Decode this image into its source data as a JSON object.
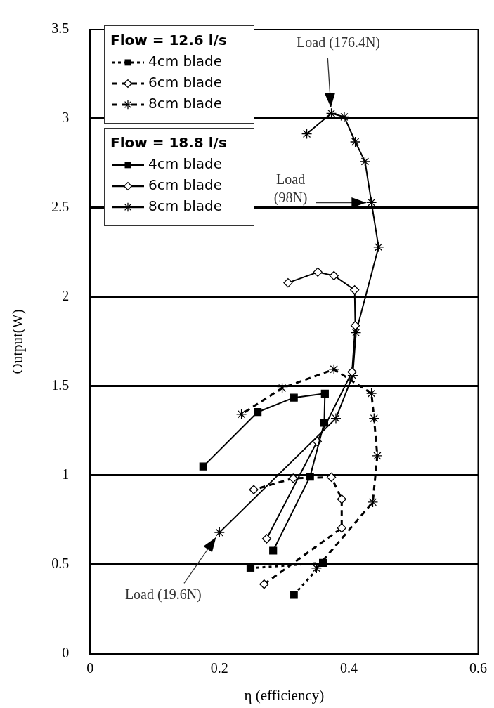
{
  "chart_data": {
    "type": "line",
    "xlabel": "η (efficiency)",
    "ylabel": "Output(W)",
    "xlim": [
      0,
      0.6
    ],
    "xticks": [
      0,
      0.2,
      0.4,
      0.6
    ],
    "ylim": [
      0,
      3.5
    ],
    "yticks": [
      0,
      0.5,
      1,
      1.5,
      2,
      2.5,
      3,
      3.5
    ],
    "grid": "y",
    "legend": "top left",
    "legend_title": "Flow = 12.6 l/s",
    "series": [
      {
        "name": "4cm blade",
        "color": "#000000",
        "marker": "square",
        "line_style": "dotted",
        "x": [
          0.315,
          0.36,
          0.248
        ],
        "values": [
          0.33,
          0.51,
          0.48
        ]
      },
      {
        "name": "6cm blade",
        "color": "#000000",
        "marker": "diamond",
        "line_style": "dashed",
        "x": [
          0.269,
          0.389,
          0.389,
          0.373,
          0.314,
          0.253
        ],
        "values": [
          0.39,
          0.705,
          0.867,
          0.99,
          0.984,
          0.92
        ]
      },
      {
        "name": "8cm blade",
        "color": "#000000",
        "marker": "cross",
        "line_style": "dashed",
        "x": [
          0.35,
          0.437,
          0.444,
          0.439,
          0.435,
          0.377,
          0.297,
          0.234
        ],
        "values": [
          0.48,
          0.85,
          1.11,
          1.32,
          1.46,
          1.595,
          1.49,
          1.343
        ]
      },
      {
        "name": "4cm blade",
        "color": "#000000",
        "marker": "square",
        "line_style": "solid",
        "x": [
          0.175,
          0.259,
          0.315,
          0.363,
          0.362,
          0.34,
          0.283
        ],
        "values": [
          1.05,
          1.355,
          1.436,
          1.459,
          1.295,
          0.993,
          0.578
        ]
      },
      {
        "name": "6cm blade",
        "color": "#000000",
        "marker": "diamond",
        "line_style": "solid",
        "x": [
          0.306,
          0.352,
          0.377,
          0.409,
          0.41,
          0.405,
          0.351,
          0.273
        ],
        "values": [
          2.08,
          2.14,
          2.12,
          2.04,
          1.84,
          1.58,
          1.19,
          0.645
        ]
      },
      {
        "name": "8cm blade",
        "color": "#000000",
        "marker": "cross",
        "line_style": "solid",
        "x": [
          0.335,
          0.373,
          0.393,
          0.41,
          0.425,
          0.435,
          0.446,
          0.411,
          0.406,
          0.38,
          0.2
        ],
        "values": [
          2.915,
          3.03,
          3.01,
          2.87,
          2.76,
          2.53,
          2.28,
          1.8,
          1.56,
          1.32,
          0.68
        ]
      }
    ],
    "annotations": [
      "Flow = 18.8 l/s",
      {
        "text": "Load (176.4N)",
        "x": 0.373,
        "y": 3.03
      },
      {
        "text": "Load (98N)",
        "x": 0.435,
        "y": 2.53
      },
      {
        "text": "Load (19.6N)",
        "x": 0.2,
        "y": 0.68
      }
    ]
  }
}
